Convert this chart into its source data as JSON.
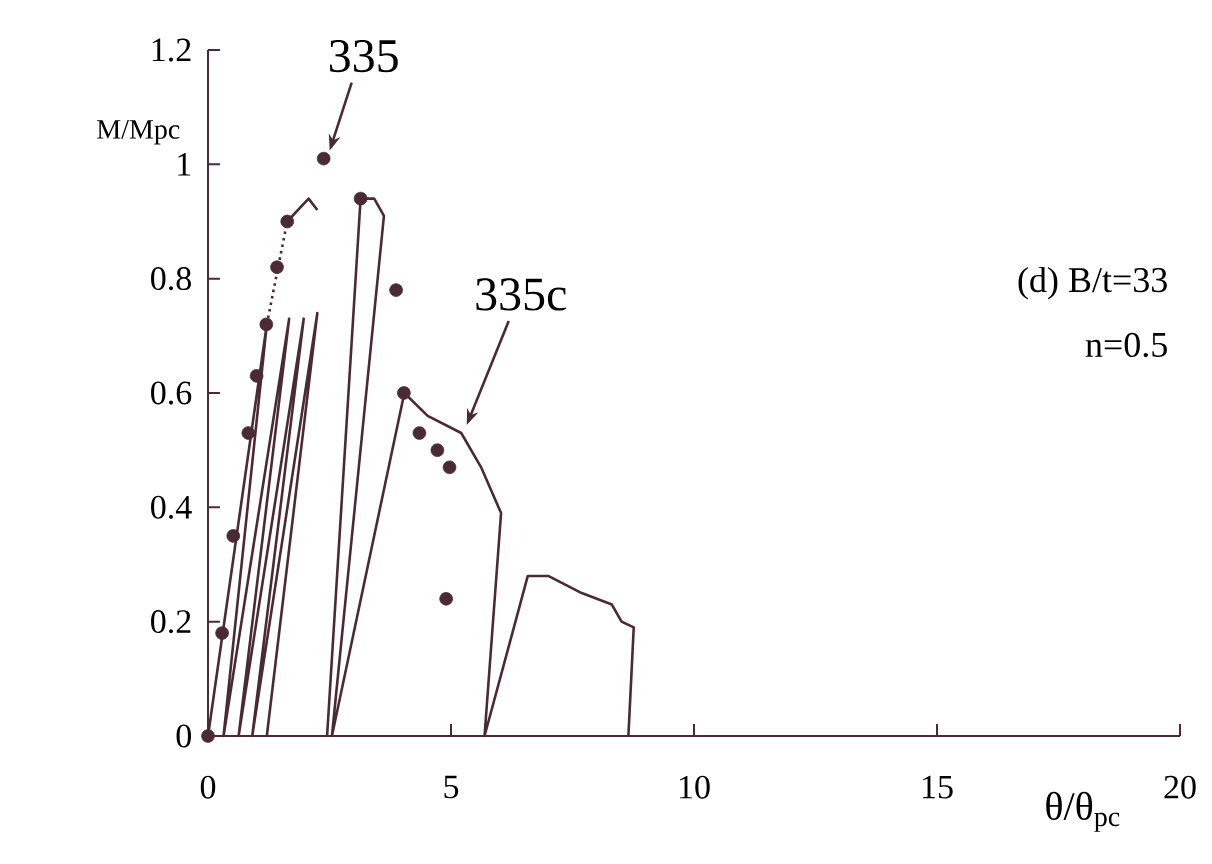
{
  "chart_data": {
    "type": "line",
    "xlabel": "θ/θ$_{pc}$",
    "ylabel": "M/Mpc",
    "xlim": [
      0,
      20
    ],
    "ylim": [
      0,
      1.2
    ],
    "xticks": [
      0,
      5,
      10,
      15,
      20
    ],
    "yticks": [
      0,
      0.2,
      0.4,
      0.6,
      0.8,
      1,
      1.2
    ],
    "grid": false,
    "annotations": [
      {
        "text": "335",
        "x": 2.38,
        "y": 1.01
      },
      {
        "text": "335c",
        "x": 5.2,
        "y": 0.53
      },
      "(d) B/t=33",
      "n=0.5"
    ],
    "series": [
      {
        "color": "#4a2a35",
        "marker": "none",
        "line_style": "solid",
        "x": [
          0,
          1.21,
          0.32,
          1.67,
          0.63,
          1.97,
          0.91,
          2.25,
          1.21
        ],
        "values": [
          0,
          0.72,
          0,
          0.73,
          0,
          0.73,
          0,
          0.74,
          0
        ]
      },
      {
        "color": "#4a2a35",
        "marker": "none",
        "line_style": "dotted",
        "x": [
          1.21,
          1.63
        ],
        "values": [
          0.72,
          0.9
        ]
      },
      {
        "color": "#4a2a35",
        "marker": "none",
        "line_style": "solid",
        "x": [
          1.63,
          2.07,
          2.25
        ],
        "values": [
          0.9,
          0.94,
          0.92
        ]
      },
      {
        "color": "#4a2a35",
        "marker": "none",
        "line_style": "solid",
        "x": [
          2.45,
          3.14,
          3.42,
          3.62,
          2.55,
          4.04,
          4.52,
          5.21,
          5.62,
          6.03,
          5.69,
          6.58,
          7.0,
          7.69,
          8.31,
          8.51,
          8.76,
          8.65
        ],
        "values": [
          0,
          0.94,
          0.94,
          0.91,
          0,
          0.6,
          0.56,
          0.53,
          0.47,
          0.39,
          0,
          0.28,
          0.28,
          0.25,
          0.23,
          0.2,
          0.19,
          0
        ]
      },
      {
        "type": "scatter",
        "color": "#4a2a35",
        "marker": "circle",
        "x": [
          0,
          0.29,
          0.52,
          0.83,
          1.0,
          1.2,
          1.42,
          1.63,
          2.38,
          3.14,
          3.87,
          4.03,
          4.35,
          4.72,
          4.97,
          4.9
        ],
        "values": [
          0,
          0.18,
          0.35,
          0.53,
          0.63,
          0.72,
          0.82,
          0.9,
          1.01,
          0.94,
          0.78,
          0.6,
          0.53,
          0.5,
          0.47,
          0.24
        ]
      }
    ]
  }
}
